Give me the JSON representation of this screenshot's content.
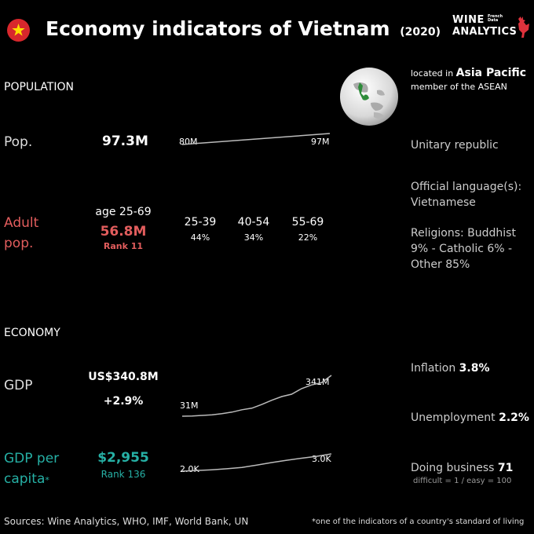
{
  "header": {
    "title": "Economy indicators of Vietnam",
    "year": "(2020)",
    "logo_line1": "WINE",
    "logo_line2": "ANALYTICS",
    "logo_tag": "French Data",
    "flag_colors": [
      "#d8272c",
      "#ffde00"
    ]
  },
  "population": {
    "section": "POPULATION",
    "pop_label": "Pop.",
    "pop_value": "97.3M",
    "pop_spark_start": "80M",
    "pop_spark_end": "97M",
    "adult_label_line1": "Adult",
    "adult_label_line2": "pop.",
    "adult_age": "age 25-69",
    "adult_value": "56.8M",
    "adult_rank": "Rank 11",
    "age_groups": [
      {
        "range": "25-39",
        "share": "44%"
      },
      {
        "range": "40-54",
        "share": "34%"
      },
      {
        "range": "55-69",
        "share": "22%"
      }
    ]
  },
  "economy": {
    "section": "ECONOMY",
    "gdp_label": "GDP",
    "gdp_value": "US$340.8M",
    "gdp_growth": "+2.9%",
    "gdp_spark_start": "31M",
    "gdp_spark_end": "341M",
    "gdppc_label_line1": "GDP per",
    "gdppc_label_line2": "capita",
    "gdppc_asterisk": "*",
    "gdppc_value": "$2,955",
    "gdppc_rank": "Rank 136",
    "gdppc_spark_start": "2.0K",
    "gdppc_spark_end": "3.0K"
  },
  "profile": {
    "located_prefix": "located in",
    "region": "Asia Pacific",
    "member": "member of the ASEAN",
    "government": "Unitary republic",
    "language_label": "Official language(s):",
    "language": "Vietnamese",
    "religions_line1": "Religions: Buddhist",
    "religions_line2": "9% - Catholic 6% -",
    "religions_line3": "Other 85%",
    "inflation_label": "Inflation",
    "inflation_value": "3.8%",
    "unemployment_label": "Unemployment",
    "unemployment_value": "2.2%",
    "doing_business_label": "Doing business",
    "doing_business_value": "71",
    "doing_business_note": "difficult = 1 / easy = 100"
  },
  "footer": {
    "sources": "Sources: Wine Analytics, WHO, IMF, World Bank, UN",
    "note": "*one of the indicators of a country's standard of living"
  },
  "colors": {
    "adult_accent": "#e25d5d",
    "gdppc_accent": "#26b0a5",
    "spark_line": "#bbbbbb",
    "globe_highlight": "#2e8b3a"
  },
  "chart_data": [
    {
      "type": "line",
      "name": "Population",
      "y": [
        80,
        97
      ],
      "ylabel": "",
      "unit": "M"
    },
    {
      "type": "line",
      "name": "GDP",
      "y": [
        31,
        33,
        37,
        42,
        50,
        62,
        80,
        92,
        120,
        152,
        180,
        198,
        240,
        268,
        285,
        341
      ],
      "unit": "M"
    },
    {
      "type": "line",
      "name": "GDP per capita",
      "y": [
        2.0,
        2.04,
        2.08,
        2.14,
        2.22,
        2.35,
        2.5,
        2.63,
        2.75,
        2.86,
        3.0
      ],
      "unit": "K"
    }
  ]
}
